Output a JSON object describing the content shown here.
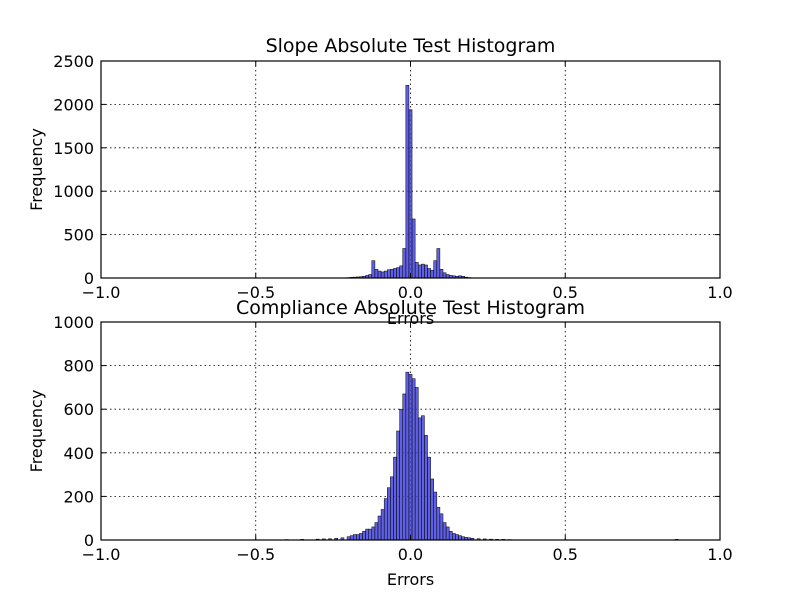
{
  "chart_data": [
    {
      "type": "bar",
      "title": "Slope Absolute Test Histogram",
      "xlabel": "Errors",
      "ylabel": "Frequency",
      "xlim": [
        -1.0,
        1.0
      ],
      "ylim": [
        0,
        2500
      ],
      "xticks": [
        "−1.0",
        "−0.5",
        "0.0",
        "0.5",
        "1.0"
      ],
      "xtick_values": [
        -1.0,
        -0.5,
        0.0,
        0.5,
        1.0
      ],
      "yticks": [
        "0",
        "500",
        "1000",
        "1500",
        "2000",
        "2500"
      ],
      "ytick_values": [
        0,
        500,
        1000,
        1500,
        2000,
        2500
      ],
      "grid": true,
      "bar_color": "#4444dd",
      "bin_width": 0.01,
      "x": [
        -0.2,
        -0.19,
        -0.18,
        -0.17,
        -0.16,
        -0.15,
        -0.14,
        -0.13,
        -0.12,
        -0.11,
        -0.1,
        -0.09,
        -0.08,
        -0.07,
        -0.06,
        -0.05,
        -0.04,
        -0.03,
        -0.02,
        -0.01,
        0.0,
        0.01,
        0.02,
        0.03,
        0.04,
        0.05,
        0.06,
        0.07,
        0.08,
        0.09,
        0.1,
        0.11,
        0.12,
        0.13,
        0.14,
        0.15,
        0.16,
        0.17,
        0.18,
        0.19,
        0.2
      ],
      "values": [
        5,
        8,
        10,
        12,
        15,
        20,
        30,
        40,
        200,
        100,
        80,
        70,
        80,
        95,
        100,
        110,
        120,
        140,
        340,
        2220,
        1940,
        680,
        180,
        150,
        160,
        150,
        110,
        90,
        200,
        340,
        100,
        60,
        40,
        30,
        25,
        20,
        25,
        20,
        10,
        5,
        3
      ]
    },
    {
      "type": "bar",
      "title": "Compliance Absolute Test Histogram",
      "xlabel": "Errors",
      "ylabel": "Frequency",
      "xlim": [
        -1.0,
        1.0
      ],
      "ylim": [
        0,
        1000
      ],
      "xticks": [
        "−1.0",
        "−0.5",
        "0.0",
        "0.5",
        "1.0"
      ],
      "xtick_values": [
        -1.0,
        -0.5,
        0.0,
        0.5,
        1.0
      ],
      "yticks": [
        "0",
        "200",
        "400",
        "600",
        "800",
        "1000"
      ],
      "ytick_values": [
        0,
        200,
        400,
        600,
        800,
        1000
      ],
      "grid": true,
      "bar_color": "#4444dd",
      "bin_width": 0.01,
      "x": [
        -0.4,
        -0.35,
        -0.3,
        -0.28,
        -0.26,
        -0.24,
        -0.22,
        -0.2,
        -0.19,
        -0.18,
        -0.17,
        -0.16,
        -0.15,
        -0.14,
        -0.13,
        -0.12,
        -0.11,
        -0.1,
        -0.09,
        -0.08,
        -0.07,
        -0.06,
        -0.05,
        -0.04,
        -0.03,
        -0.02,
        -0.01,
        0.0,
        0.01,
        0.02,
        0.03,
        0.04,
        0.05,
        0.06,
        0.07,
        0.08,
        0.09,
        0.1,
        0.11,
        0.12,
        0.13,
        0.14,
        0.15,
        0.16,
        0.17,
        0.18,
        0.19,
        0.2,
        0.22,
        0.24,
        0.26,
        0.28,
        0.3,
        0.32,
        0.86
      ],
      "values": [
        2,
        3,
        4,
        5,
        6,
        8,
        10,
        15,
        20,
        25,
        25,
        30,
        40,
        50,
        50,
        60,
        80,
        110,
        140,
        190,
        240,
        290,
        380,
        500,
        600,
        670,
        770,
        760,
        740,
        700,
        560,
        570,
        480,
        380,
        280,
        220,
        150,
        120,
        80,
        60,
        40,
        30,
        25,
        20,
        15,
        12,
        10,
        8,
        6,
        5,
        4,
        3,
        3,
        2,
        3
      ]
    }
  ]
}
